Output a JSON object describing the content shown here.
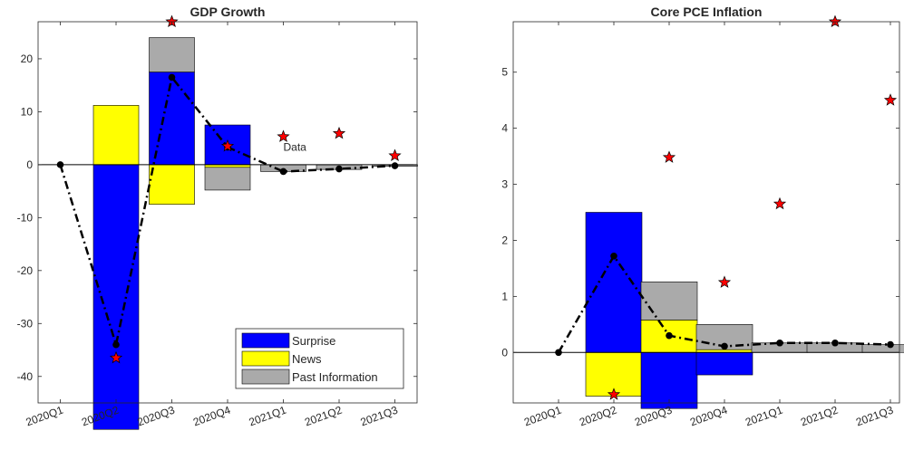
{
  "chart_data": [
    {
      "type": "bar",
      "stacked": true,
      "title": "GDP Growth",
      "categories": [
        "2020Q1",
        "2020Q2",
        "2020Q3",
        "2020Q4",
        "2021Q1",
        "2021Q2",
        "2021Q3"
      ],
      "ylim": [
        -45,
        27
      ],
      "yticks": [
        -40,
        -30,
        -20,
        -10,
        0,
        10,
        20
      ],
      "grid": false,
      "legend": {
        "placement": "bottom-right",
        "entries": [
          {
            "label": "Surprise",
            "color": "#0000ff"
          },
          {
            "label": "News",
            "color": "#ffff00"
          },
          {
            "label": "Past Information",
            "color": "#aaaaaa"
          }
        ]
      },
      "series": [
        {
          "name": "Surprise",
          "color": "#0000ff",
          "values": [
            0,
            -50,
            17.5,
            7.5,
            0,
            0,
            0
          ]
        },
        {
          "name": "News",
          "color": "#ffff00",
          "values": [
            0,
            11.2,
            -7.5,
            -0.5,
            0,
            0,
            0
          ]
        },
        {
          "name": "Past Information",
          "color": "#aaaaaa",
          "values": [
            0,
            0,
            6.5,
            -4.3,
            -1.3,
            -0.9,
            -0.3
          ]
        }
      ],
      "line": {
        "color": "#000000",
        "values": [
          0,
          -34,
          16.5,
          3.3,
          -1.3,
          -0.8,
          -0.2
        ]
      },
      "stars": {
        "color": "#ff0000",
        "values": [
          null,
          -36.5,
          27,
          3.5,
          5.3,
          5.9,
          1.7
        ]
      },
      "annotations": [
        {
          "text": "Data",
          "x": "2021Q1",
          "y": 3.3
        }
      ]
    },
    {
      "type": "bar",
      "stacked": true,
      "title": "Core PCE Inflation",
      "categories": [
        "2020Q1",
        "2020Q2",
        "2020Q3",
        "2020Q4",
        "2021Q1",
        "2021Q2",
        "2021Q3"
      ],
      "ylim": [
        -0.9,
        5.9
      ],
      "yticks": [
        0,
        1,
        2,
        3,
        4,
        5
      ],
      "grid": false,
      "series": [
        {
          "name": "Surprise",
          "color": "#0000ff",
          "values": [
            0,
            2.5,
            -1.0,
            -0.4,
            0,
            0,
            0
          ]
        },
        {
          "name": "News",
          "color": "#ffff00",
          "values": [
            0,
            -0.78,
            0.58,
            0.05,
            0,
            0,
            0
          ]
        },
        {
          "name": "Past Information",
          "color": "#aaaaaa",
          "values": [
            0,
            0,
            0.68,
            0.45,
            0.17,
            0.17,
            0.14
          ]
        }
      ],
      "line": {
        "color": "#000000",
        "values": [
          0,
          1.72,
          0.3,
          0.11,
          0.17,
          0.17,
          0.14
        ]
      },
      "stars": {
        "color": "#ff0000",
        "values": [
          null,
          -0.75,
          3.48,
          1.25,
          2.65,
          5.9,
          4.5
        ]
      }
    }
  ]
}
